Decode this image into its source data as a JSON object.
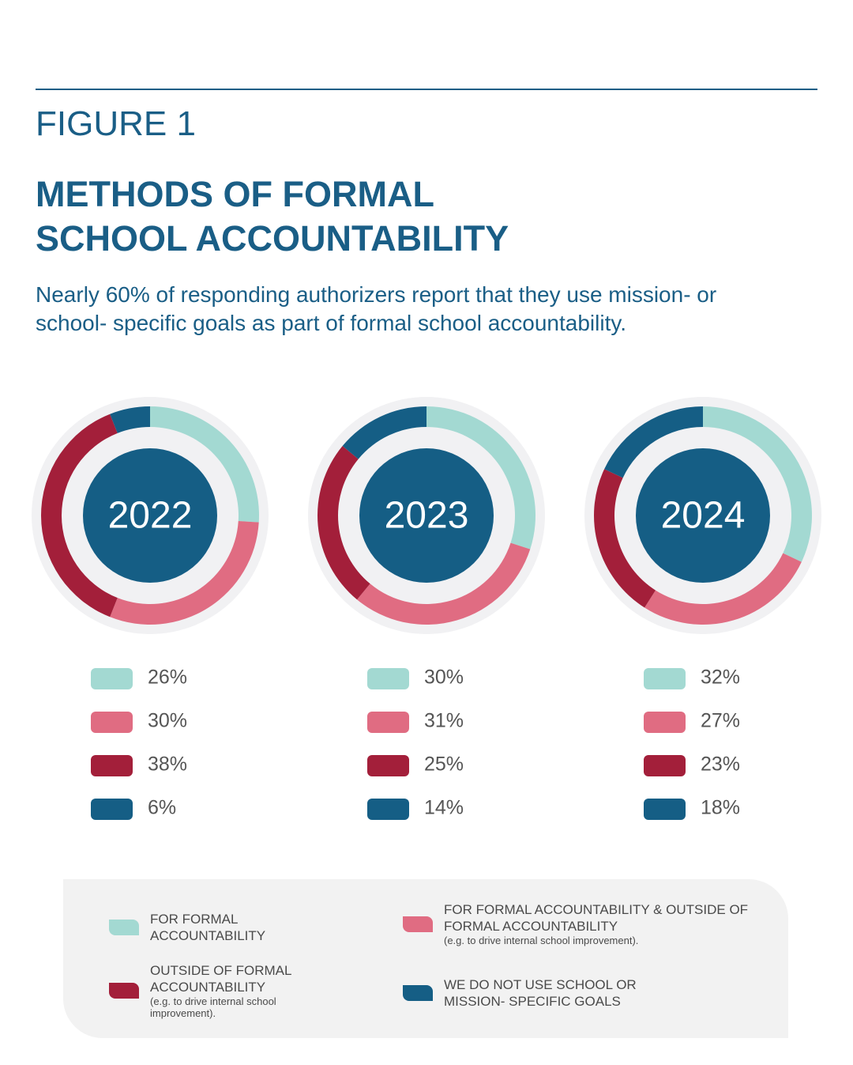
{
  "header": {
    "figure": "FIGURE 1",
    "title_lines": [
      "METHODS OF FORMAL",
      "SCHOOL ACCOUNTABILITY"
    ],
    "subtitle": "Nearly 60% of responding authorizers report that they use mission- or school- specific goals as part of formal school accountability."
  },
  "chart_data": [
    {
      "type": "donut",
      "center_label": "2022",
      "values": [
        26,
        30,
        38,
        6
      ],
      "value_labels": [
        "26%",
        "30%",
        "38%",
        "6%"
      ],
      "colors": [
        "#a3d9d2",
        "#e06c82",
        "#a31f3a",
        "#155e85"
      ]
    },
    {
      "type": "donut",
      "center_label": "2023",
      "values": [
        30,
        31,
        25,
        14
      ],
      "value_labels": [
        "30%",
        "31%",
        "25%",
        "14%"
      ],
      "colors": [
        "#a3d9d2",
        "#e06c82",
        "#a31f3a",
        "#155e85"
      ]
    },
    {
      "type": "donut",
      "center_label": "2024",
      "values": [
        32,
        27,
        23,
        18
      ],
      "value_labels": [
        "32%",
        "27%",
        "23%",
        "18%"
      ],
      "colors": [
        "#a3d9d2",
        "#e06c82",
        "#a31f3a",
        "#155e85"
      ]
    }
  ],
  "legend": {
    "items": [
      {
        "label": "FOR FORMAL ACCOUNTABILITY",
        "color": "#a3d9d2"
      },
      {
        "label": "FOR FORMAL ACCOUNTABILITY & OUTSIDE OF FORMAL ACCOUNTABILITY",
        "note": "(e.g. to drive internal school improvement).",
        "color": "#e06c82"
      },
      {
        "label": "OUTSIDE OF FORMAL ACCOUNTABILITY",
        "note": "(e.g. to drive internal school improvement).",
        "color": "#a31f3a"
      },
      {
        "label": "WE DO NOT USE SCHOOL OR MISSION- SPECIFIC GOALS",
        "color": "#155e85"
      }
    ]
  }
}
